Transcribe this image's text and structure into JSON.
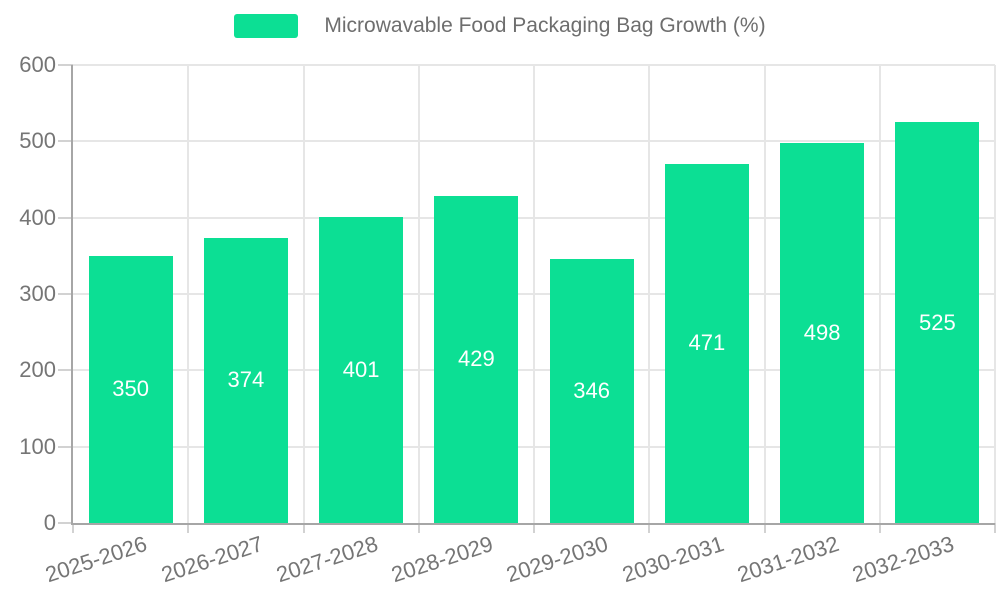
{
  "chart_data": {
    "type": "bar",
    "series_name": "Microwavable Food Packaging Bag Growth (%)",
    "categories": [
      "2025-2026",
      "2026-2027",
      "2027-2028",
      "2028-2029",
      "2029-2030",
      "2030-2031",
      "2031-2032",
      "2032-2033"
    ],
    "values": [
      350,
      374,
      401,
      429,
      346,
      471,
      498,
      525
    ],
    "ylim": [
      0,
      600
    ],
    "yticks": [
      0,
      100,
      200,
      300,
      400,
      500,
      600
    ],
    "grid": true,
    "legend_position": "top-center",
    "x_label_rotation_deg": -18,
    "bar_value_labels_position": "inside-center",
    "colors": {
      "bar": "#0cdf94",
      "value_label": "#ffffff",
      "axis_text": "#757575",
      "legend_text": "#6e6e6e",
      "grid": "#e6e6e6",
      "tick": "#d2d2d2",
      "axis_line": "#a6a6a6",
      "background": "#ffffff"
    }
  }
}
